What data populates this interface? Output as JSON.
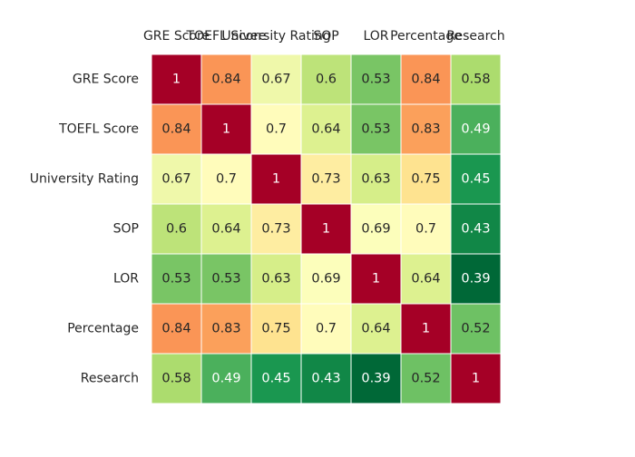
{
  "chart_data": {
    "type": "heatmap",
    "title": "",
    "xlabel": "",
    "ylabel": "",
    "x_labels": [
      "GRE Score",
      "TOEFL Score",
      "University Rating",
      "SOP",
      "LOR ",
      "Percentage",
      "Research"
    ],
    "y_labels": [
      "GRE Score",
      "TOEFL Score",
      "University Rating",
      "SOP",
      "LOR ",
      "Percentage",
      "Research"
    ],
    "x_axis_position": "top",
    "colormap": "RdYlGn_r",
    "grid": false,
    "cell_borders": "white",
    "values": [
      [
        1,
        0.84,
        0.67,
        0.6,
        0.53,
        0.84,
        0.58
      ],
      [
        0.84,
        1,
        0.7,
        0.64,
        0.53,
        0.83,
        0.49
      ],
      [
        0.67,
        0.7,
        1,
        0.73,
        0.63,
        0.75,
        0.45
      ],
      [
        0.6,
        0.64,
        0.73,
        1,
        0.69,
        0.7,
        0.43
      ],
      [
        0.53,
        0.53,
        0.63,
        0.69,
        1,
        0.64,
        0.39
      ],
      [
        0.84,
        0.83,
        0.75,
        0.7,
        0.64,
        1,
        0.52
      ],
      [
        0.58,
        0.49,
        0.45,
        0.43,
        0.39,
        0.52,
        1
      ]
    ],
    "value_labels": [
      [
        "1",
        "0.84",
        "0.67",
        "0.6",
        "0.53",
        "0.84",
        "0.58"
      ],
      [
        "0.84",
        "1",
        "0.7",
        "0.64",
        "0.53",
        "0.83",
        "0.49"
      ],
      [
        "0.67",
        "0.7",
        "1",
        "0.73",
        "0.63",
        "0.75",
        "0.45"
      ],
      [
        "0.6",
        "0.64",
        "0.73",
        "1",
        "0.69",
        "0.7",
        "0.43"
      ],
      [
        "0.53",
        "0.53",
        "0.63",
        "0.69",
        "1",
        "0.64",
        "0.39"
      ],
      [
        "0.84",
        "0.83",
        "0.75",
        "0.7",
        "0.64",
        "1",
        "0.52"
      ],
      [
        "0.58",
        "0.49",
        "0.45",
        "0.43",
        "0.39",
        "0.52",
        "1"
      ]
    ]
  }
}
